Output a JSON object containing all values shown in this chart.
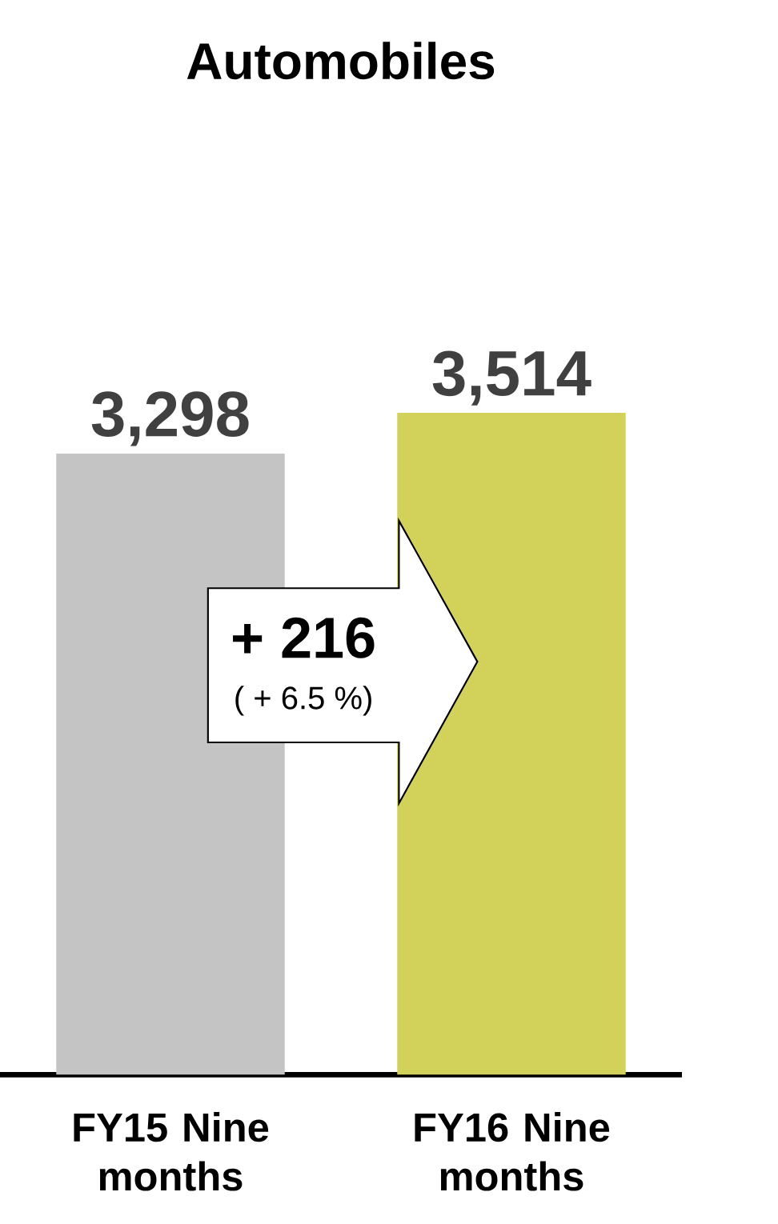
{
  "chart_data": {
    "type": "bar",
    "title": "Automobiles",
    "categories": [
      "FY15 Nine months",
      "FY16 Nine months"
    ],
    "values": [
      3298,
      3514
    ],
    "colors": [
      "#c4c4c4",
      "#d2d25a"
    ],
    "value_labels": [
      "3,298",
      "3,514"
    ],
    "annotations": [
      "+ 216",
      "( + 6.5 %)"
    ]
  }
}
